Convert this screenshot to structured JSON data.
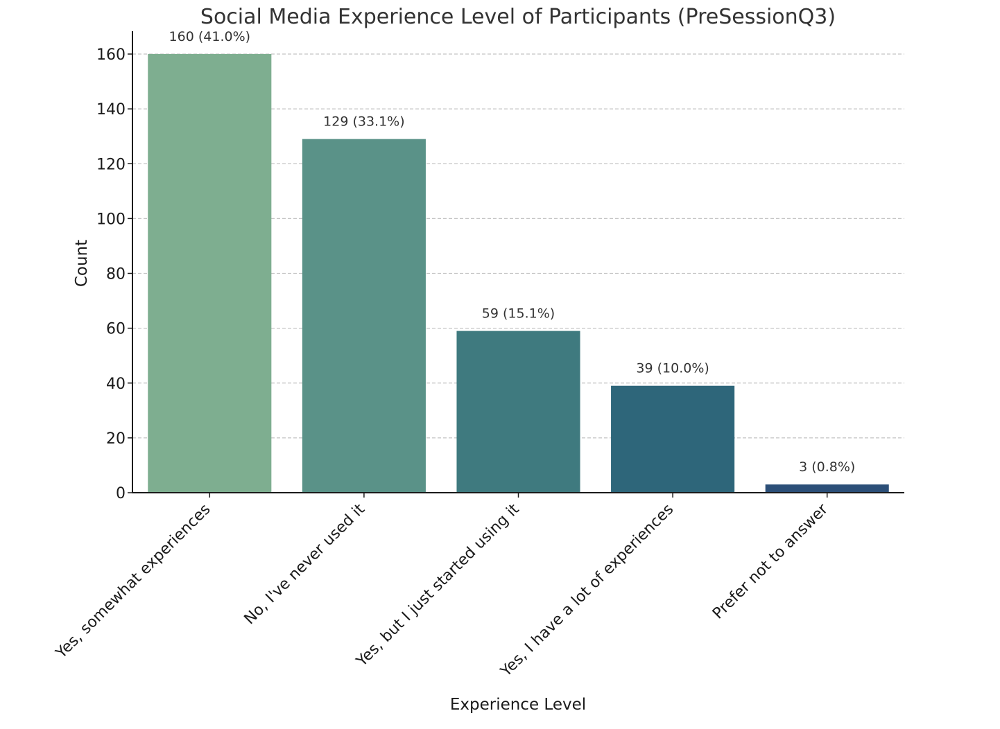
{
  "chart_data": {
    "type": "bar",
    "title": "Social Media Experience Level of Participants (PreSessionQ3)",
    "xlabel": "Experience Level",
    "ylabel": "Count",
    "ylim": [
      0,
      168
    ],
    "yticks": [
      0,
      20,
      40,
      60,
      80,
      100,
      120,
      140,
      160
    ],
    "grid": true,
    "categories": [
      "Yes, somewhat experiences",
      "No, I've never used it",
      "Yes, but I just started using it",
      "Yes, I have a lot of experiences",
      "Prefer not to answer"
    ],
    "values": [
      160,
      129,
      59,
      39,
      3
    ],
    "data_labels": [
      "160 (41.0%)",
      "129 (33.1%)",
      "59 (15.1%)",
      "39 (10.0%)",
      "3 (0.8%)"
    ],
    "colors": [
      "#7eae90",
      "#5a9288",
      "#3f7a7f",
      "#2e667a",
      "#2c4f78"
    ]
  }
}
